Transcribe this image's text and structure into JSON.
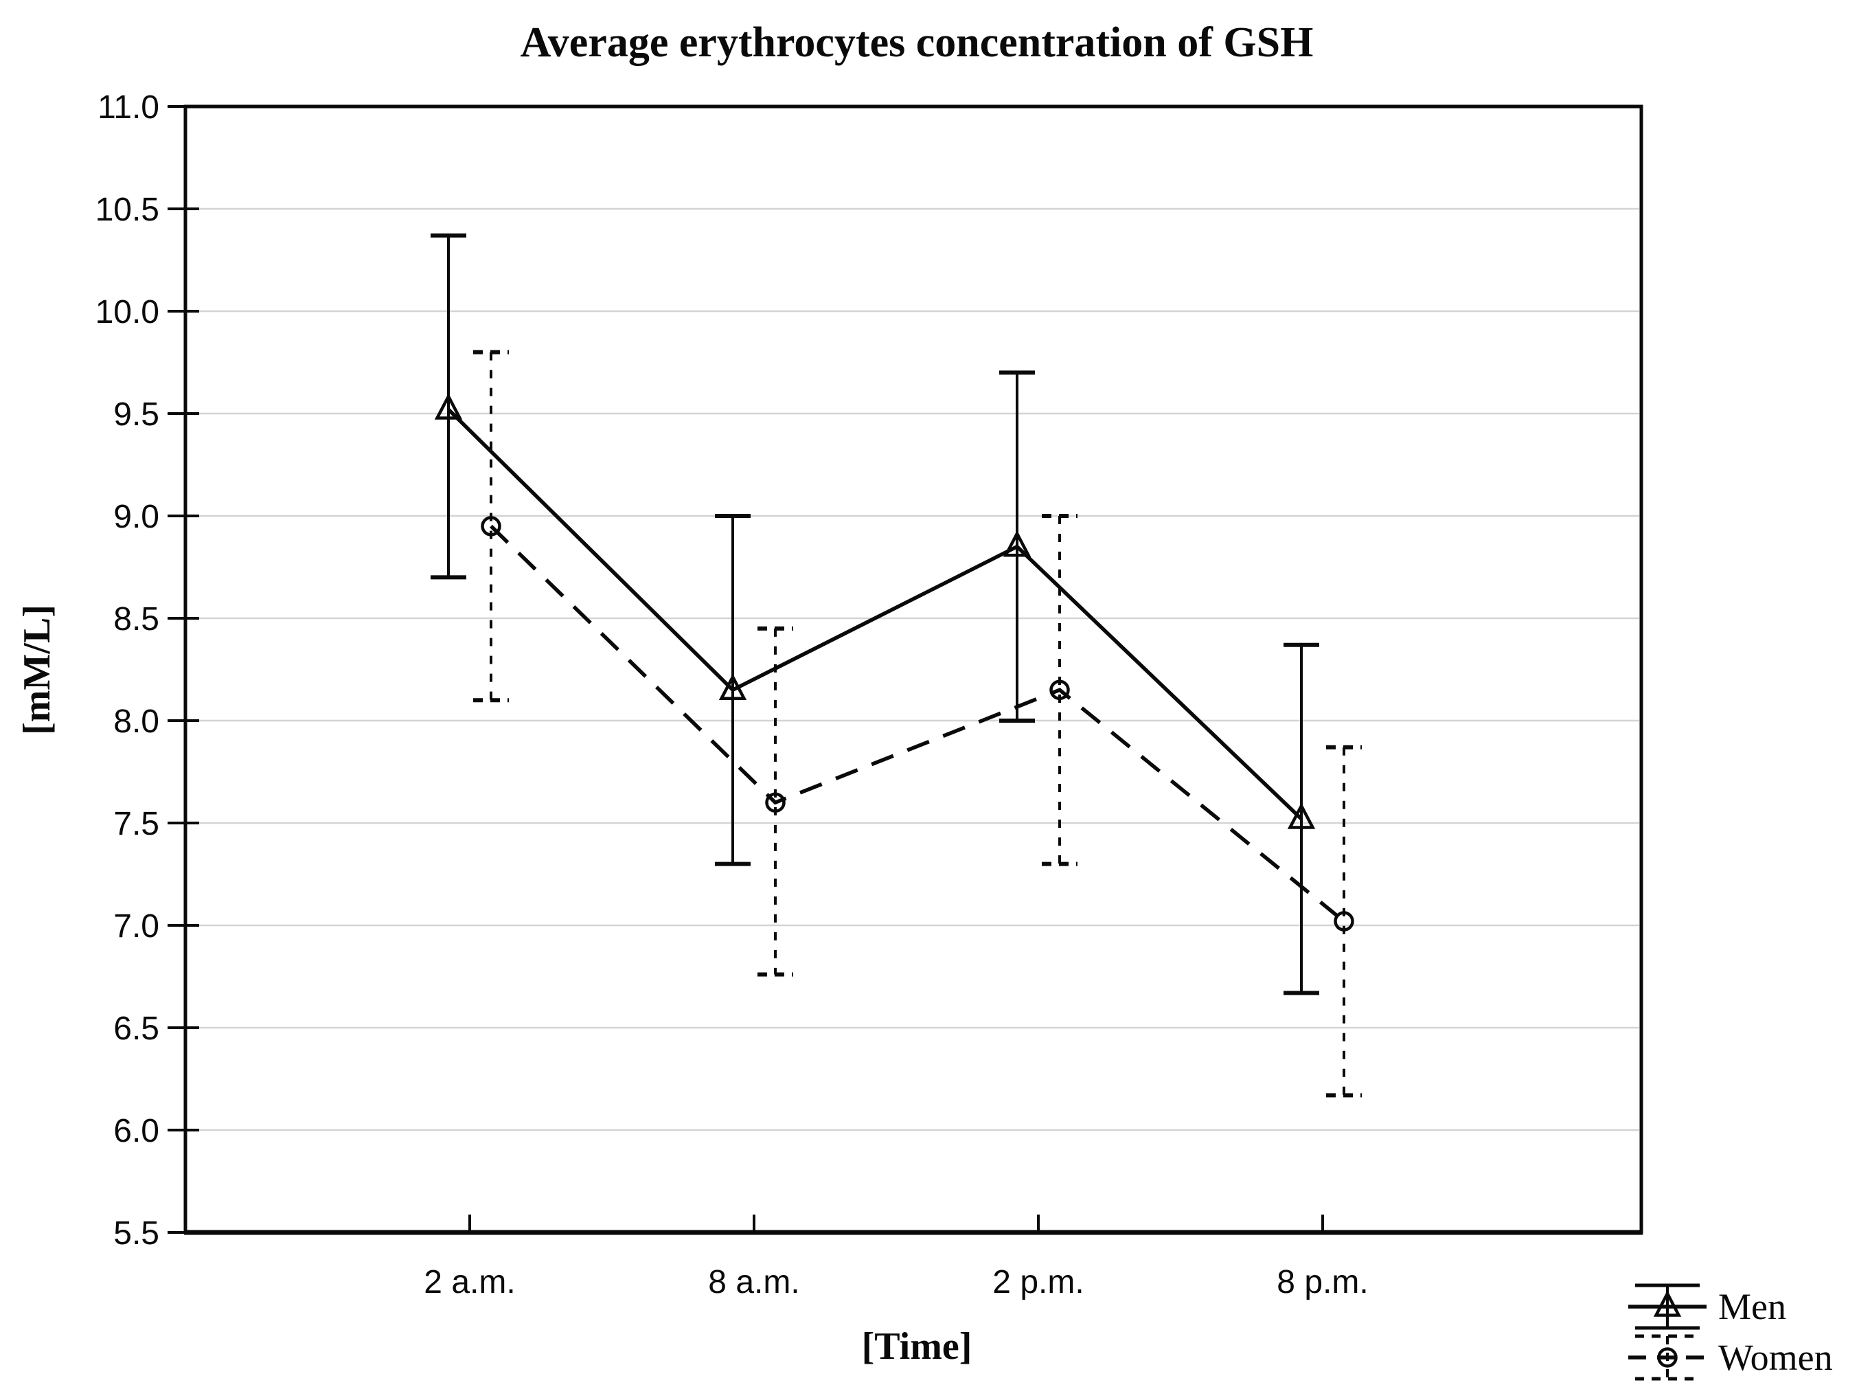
{
  "title": "Average erythrocytes concentration of GSH",
  "y_axis": {
    "label": "[mM/L]",
    "tick_labels": [
      "11.0",
      "10.5",
      "10.0",
      "9.5",
      "9.0",
      "8.5",
      "8.0",
      "7.5",
      "7.0",
      "6.5",
      "6.0",
      "5.5"
    ]
  },
  "x_axis": {
    "label": "[Time]",
    "categories": [
      "2 a.m.",
      "8 a.m.",
      "2 p.m.",
      "8 p.m."
    ]
  },
  "legend": [
    {
      "label": "Men",
      "marker": "triangle",
      "line_style": "solid"
    },
    {
      "label": "Women",
      "marker": "circle",
      "line_style": "dashed"
    }
  ],
  "colors": {
    "foreground": "#0a0a0a",
    "gridline": "#d4d4d4",
    "background": "#ffffff"
  },
  "chart_data": {
    "type": "line",
    "title": "Average erythrocytes concentration of GSH",
    "xlabel": "[Time]",
    "ylabel": "[mM/L]",
    "ylim": [
      5.5,
      11.0
    ],
    "ytick_step": 0.5,
    "grid": true,
    "legend_position": "bottom-right",
    "categories": [
      "2 a.m.",
      "8 a.m.",
      "2 p.m.",
      "8 p.m."
    ],
    "series": [
      {
        "name": "Men",
        "marker": "triangle",
        "line_style": "solid",
        "values": [
          9.52,
          8.15,
          8.85,
          7.52
        ],
        "error_low": [
          8.7,
          7.3,
          8.0,
          6.67
        ],
        "error_high": [
          10.37,
          9.0,
          9.7,
          8.37
        ]
      },
      {
        "name": "Women",
        "marker": "circle",
        "line_style": "dashed",
        "values": [
          8.95,
          7.6,
          8.15,
          7.02
        ],
        "error_low": [
          8.1,
          6.76,
          7.3,
          6.17
        ],
        "error_high": [
          9.8,
          8.45,
          9.0,
          7.87
        ]
      }
    ]
  }
}
